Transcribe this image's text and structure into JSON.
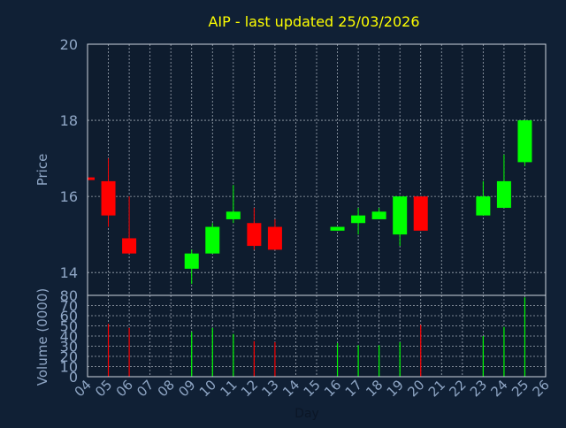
{
  "colors": {
    "background": "#102035",
    "plot_background": "#0e1c2e",
    "title": "#ffff00",
    "axis_text": "#8fa6c5",
    "axis_line": "#cfd6e0",
    "grid": "#cfd6e0",
    "up": "#00ff00",
    "down": "#ff0000"
  },
  "chart_data": [
    {
      "type": "candlestick",
      "title": "AIP - last updated 25/03/2026",
      "ylabel": "Price",
      "ylim": [
        13.4,
        20
      ],
      "yticks": [
        14,
        16,
        18,
        20
      ],
      "ytick_labels": [
        "14",
        "16",
        "18",
        "20"
      ],
      "grid": true,
      "candles": [
        {
          "day": 4,
          "open": 16.5,
          "high": 16.5,
          "low": 16.45,
          "close": 16.45
        },
        {
          "day": 5,
          "open": 16.4,
          "high": 17.0,
          "low": 15.2,
          "close": 15.5
        },
        {
          "day": 6,
          "open": 14.9,
          "high": 16.0,
          "low": 14.5,
          "close": 14.5
        },
        {
          "day": 9,
          "open": 14.1,
          "high": 14.6,
          "low": 13.7,
          "close": 14.5
        },
        {
          "day": 10,
          "open": 14.5,
          "high": 15.3,
          "low": 14.5,
          "close": 15.2
        },
        {
          "day": 11,
          "open": 15.4,
          "high": 16.3,
          "low": 15.3,
          "close": 15.6
        },
        {
          "day": 12,
          "open": 15.3,
          "high": 15.7,
          "low": 14.6,
          "close": 14.7
        },
        {
          "day": 13,
          "open": 15.2,
          "high": 15.4,
          "low": 14.6,
          "close": 14.6
        },
        {
          "day": 16,
          "open": 15.1,
          "high": 15.2,
          "low": 15.1,
          "close": 15.2
        },
        {
          "day": 17,
          "open": 15.3,
          "high": 15.7,
          "low": 15.0,
          "close": 15.5
        },
        {
          "day": 18,
          "open": 15.4,
          "high": 15.7,
          "low": 15.4,
          "close": 15.6
        },
        {
          "day": 19,
          "open": 15.0,
          "high": 16.0,
          "low": 14.7,
          "close": 16.0
        },
        {
          "day": 20,
          "open": 16.0,
          "high": 16.0,
          "low": 15.1,
          "close": 15.1
        },
        {
          "day": 23,
          "open": 15.5,
          "high": 16.4,
          "low": 15.5,
          "close": 16.0
        },
        {
          "day": 24,
          "open": 15.7,
          "high": 17.1,
          "low": 15.7,
          "close": 16.4
        },
        {
          "day": 25,
          "open": 16.9,
          "high": 18.0,
          "low": 16.8,
          "close": 18.0
        }
      ]
    },
    {
      "type": "bar",
      "ylabel": "Volume (0000)",
      "ylim": [
        0,
        80
      ],
      "yticks": [
        0,
        10,
        20,
        30,
        40,
        50,
        60,
        70,
        80
      ],
      "ytick_labels": [
        "0",
        "10",
        "20",
        "30",
        "40",
        "50",
        "60",
        "70",
        "80"
      ],
      "xlabel": "Day",
      "xlim": [
        4,
        26
      ],
      "xticks": [
        4,
        5,
        6,
        7,
        8,
        9,
        10,
        11,
        12,
        13,
        14,
        15,
        16,
        17,
        18,
        19,
        20,
        21,
        22,
        23,
        24,
        25,
        26
      ],
      "xtick_labels": [
        "04",
        "05",
        "06",
        "07",
        "08",
        "09",
        "10",
        "11",
        "12",
        "13",
        "14",
        "15",
        "16",
        "17",
        "18",
        "19",
        "20",
        "21",
        "22",
        "23",
        "24",
        "25",
        "26"
      ],
      "grid": true,
      "bars": [
        {
          "day": 5,
          "value": 52,
          "direction": "down"
        },
        {
          "day": 6,
          "value": 48,
          "direction": "down"
        },
        {
          "day": 9,
          "value": 44,
          "direction": "up"
        },
        {
          "day": 10,
          "value": 48,
          "direction": "up"
        },
        {
          "day": 11,
          "value": 42,
          "direction": "up"
        },
        {
          "day": 12,
          "value": 35,
          "direction": "down"
        },
        {
          "day": 13,
          "value": 34,
          "direction": "down"
        },
        {
          "day": 16,
          "value": 33,
          "direction": "up"
        },
        {
          "day": 17,
          "value": 31,
          "direction": "up"
        },
        {
          "day": 18,
          "value": 31,
          "direction": "up"
        },
        {
          "day": 19,
          "value": 34,
          "direction": "up"
        },
        {
          "day": 20,
          "value": 51,
          "direction": "down"
        },
        {
          "day": 23,
          "value": 40,
          "direction": "up"
        },
        {
          "day": 24,
          "value": 49,
          "direction": "up"
        },
        {
          "day": 25,
          "value": 78,
          "direction": "up"
        }
      ]
    }
  ]
}
